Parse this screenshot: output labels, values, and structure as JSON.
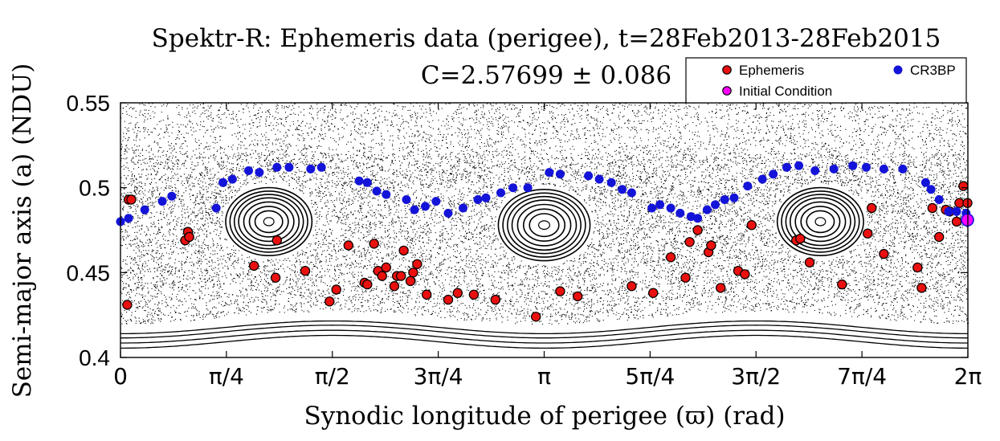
{
  "chart_data": {
    "type": "scatter",
    "title": "Spektr-R: Ephemeris data (perigee), t=28Feb2013-28Feb2015",
    "subtitle": "C=2.57699 ± 0.086",
    "xlabel": "Synodic longitude of perigee (ϖ) (rad)",
    "ylabel": "Semi-major axis (a) (NDU)",
    "xlim": [
      0,
      6.2832
    ],
    "ylim": [
      0.4,
      0.55
    ],
    "grid": false,
    "legend_position": "top-right",
    "x_ticks": [
      {
        "value": 0,
        "label": "0"
      },
      {
        "value": 0.7854,
        "label": "π/4"
      },
      {
        "value": 1.5708,
        "label": "π/2"
      },
      {
        "value": 2.3562,
        "label": "3π/4"
      },
      {
        "value": 3.1416,
        "label": "π"
      },
      {
        "value": 3.927,
        "label": "5π/4"
      },
      {
        "value": 4.7124,
        "label": "3π/2"
      },
      {
        "value": 5.4978,
        "label": "7π/4"
      },
      {
        "value": 6.2832,
        "label": "2π"
      }
    ],
    "y_ticks": [
      {
        "value": 0.4,
        "label": "0.4"
      },
      {
        "value": 0.45,
        "label": "0.45"
      },
      {
        "value": 0.5,
        "label": "0.5"
      },
      {
        "value": 0.55,
        "label": "0.55"
      }
    ],
    "background": {
      "name": "Poincaré section (CR3BP)",
      "color": "#000000",
      "islands": [
        {
          "center_x": 1.1,
          "center_y": 0.48,
          "rx": 0.32,
          "ry": 0.02
        },
        {
          "center_x": 3.1416,
          "center_y": 0.478,
          "rx": 0.34,
          "ry": 0.021
        },
        {
          "center_x": 5.19,
          "center_y": 0.48,
          "rx": 0.32,
          "ry": 0.02
        }
      ]
    },
    "series": [
      {
        "name": "Ephemeris",
        "color": "#e8110f",
        "marker": "circle-outlined",
        "points": [
          [
            0.05,
            0.431
          ],
          [
            0.06,
            0.493
          ],
          [
            0.08,
            0.493
          ],
          [
            0.48,
            0.469
          ],
          [
            0.5,
            0.474
          ],
          [
            0.51,
            0.471
          ],
          [
            0.99,
            0.454
          ],
          [
            1.15,
            0.447
          ],
          [
            1.16,
            0.469
          ],
          [
            1.37,
            0.451
          ],
          [
            1.55,
            0.433
          ],
          [
            1.6,
            0.44
          ],
          [
            1.69,
            0.466
          ],
          [
            1.81,
            0.444
          ],
          [
            1.83,
            0.443
          ],
          [
            1.88,
            0.467
          ],
          [
            1.91,
            0.451
          ],
          [
            1.94,
            0.448
          ],
          [
            1.97,
            0.453
          ],
          [
            2.03,
            0.442
          ],
          [
            2.05,
            0.448
          ],
          [
            2.08,
            0.448
          ],
          [
            2.1,
            0.463
          ],
          [
            2.15,
            0.445
          ],
          [
            2.17,
            0.45
          ],
          [
            2.2,
            0.455
          ],
          [
            2.27,
            0.437
          ],
          [
            2.43,
            0.434
          ],
          [
            2.5,
            0.438
          ],
          [
            2.62,
            0.437
          ],
          [
            2.78,
            0.434
          ],
          [
            3.08,
            0.424
          ],
          [
            3.26,
            0.439
          ],
          [
            3.39,
            0.436
          ],
          [
            3.79,
            0.442
          ],
          [
            3.95,
            0.438
          ],
          [
            4.08,
            0.459
          ],
          [
            4.19,
            0.447
          ],
          [
            4.22,
            0.468
          ],
          [
            4.28,
            0.475
          ],
          [
            4.36,
            0.462
          ],
          [
            4.38,
            0.466
          ],
          [
            4.45,
            0.441
          ],
          [
            4.58,
            0.451
          ],
          [
            4.63,
            0.449
          ],
          [
            4.68,
            0.478
          ],
          [
            5.01,
            0.469
          ],
          [
            5.04,
            0.47
          ],
          [
            5.11,
            0.456
          ],
          [
            5.35,
            0.443
          ],
          [
            5.54,
            0.473
          ],
          [
            5.57,
            0.488
          ],
          [
            5.66,
            0.461
          ],
          [
            5.91,
            0.453
          ],
          [
            5.94,
            0.441
          ],
          [
            6.02,
            0.488
          ],
          [
            6.07,
            0.471
          ],
          [
            6.12,
            0.487
          ],
          [
            6.15,
            0.486
          ],
          [
            6.2,
            0.48
          ],
          [
            6.22,
            0.491
          ],
          [
            6.25,
            0.501
          ],
          [
            6.28,
            0.491
          ]
        ]
      },
      {
        "name": "CR3BP",
        "color": "#1414d8",
        "marker": "circle",
        "points": [
          [
            0.0,
            0.48
          ],
          [
            0.06,
            0.482
          ],
          [
            0.18,
            0.487
          ],
          [
            0.31,
            0.492
          ],
          [
            0.38,
            0.495
          ],
          [
            0.71,
            0.488
          ],
          [
            0.76,
            0.503
          ],
          [
            0.83,
            0.505
          ],
          [
            0.95,
            0.51
          ],
          [
            1.03,
            0.509
          ],
          [
            1.16,
            0.512
          ],
          [
            1.25,
            0.512
          ],
          [
            1.41,
            0.511
          ],
          [
            1.49,
            0.512
          ],
          [
            1.77,
            0.504
          ],
          [
            1.83,
            0.503
          ],
          [
            1.9,
            0.498
          ],
          [
            1.97,
            0.496
          ],
          [
            2.12,
            0.493
          ],
          [
            2.18,
            0.487
          ],
          [
            2.26,
            0.489
          ],
          [
            2.34,
            0.492
          ],
          [
            2.43,
            0.485
          ],
          [
            2.54,
            0.488
          ],
          [
            2.65,
            0.493
          ],
          [
            2.71,
            0.494
          ],
          [
            2.82,
            0.497
          ],
          [
            2.91,
            0.5
          ],
          [
            3.02,
            0.5
          ],
          [
            3.18,
            0.509
          ],
          [
            3.26,
            0.508
          ],
          [
            3.47,
            0.507
          ],
          [
            3.55,
            0.505
          ],
          [
            3.64,
            0.503
          ],
          [
            3.72,
            0.499
          ],
          [
            3.79,
            0.497
          ],
          [
            3.94,
            0.488
          ],
          [
            4.0,
            0.49
          ],
          [
            4.08,
            0.488
          ],
          [
            4.15,
            0.485
          ],
          [
            4.23,
            0.483
          ],
          [
            4.28,
            0.482
          ],
          [
            4.35,
            0.487
          ],
          [
            4.41,
            0.49
          ],
          [
            4.48,
            0.493
          ],
          [
            4.55,
            0.494
          ],
          [
            4.65,
            0.501
          ],
          [
            4.76,
            0.505
          ],
          [
            4.84,
            0.508
          ],
          [
            4.94,
            0.512
          ],
          [
            5.03,
            0.513
          ],
          [
            5.15,
            0.51
          ],
          [
            5.29,
            0.511
          ],
          [
            5.43,
            0.513
          ],
          [
            5.53,
            0.512
          ],
          [
            5.66,
            0.511
          ],
          [
            5.8,
            0.511
          ],
          [
            5.97,
            0.503
          ],
          [
            6.01,
            0.499
          ],
          [
            6.07,
            0.493
          ],
          [
            6.14,
            0.486
          ],
          [
            6.2,
            0.486
          ],
          [
            6.27,
            0.485
          ],
          [
            6.28,
            0.481
          ]
        ]
      },
      {
        "name": "Initial Condition",
        "color": "#ff00ff",
        "marker": "circle-outlined-large",
        "points": [
          [
            6.28,
            0.481
          ]
        ]
      }
    ]
  }
}
